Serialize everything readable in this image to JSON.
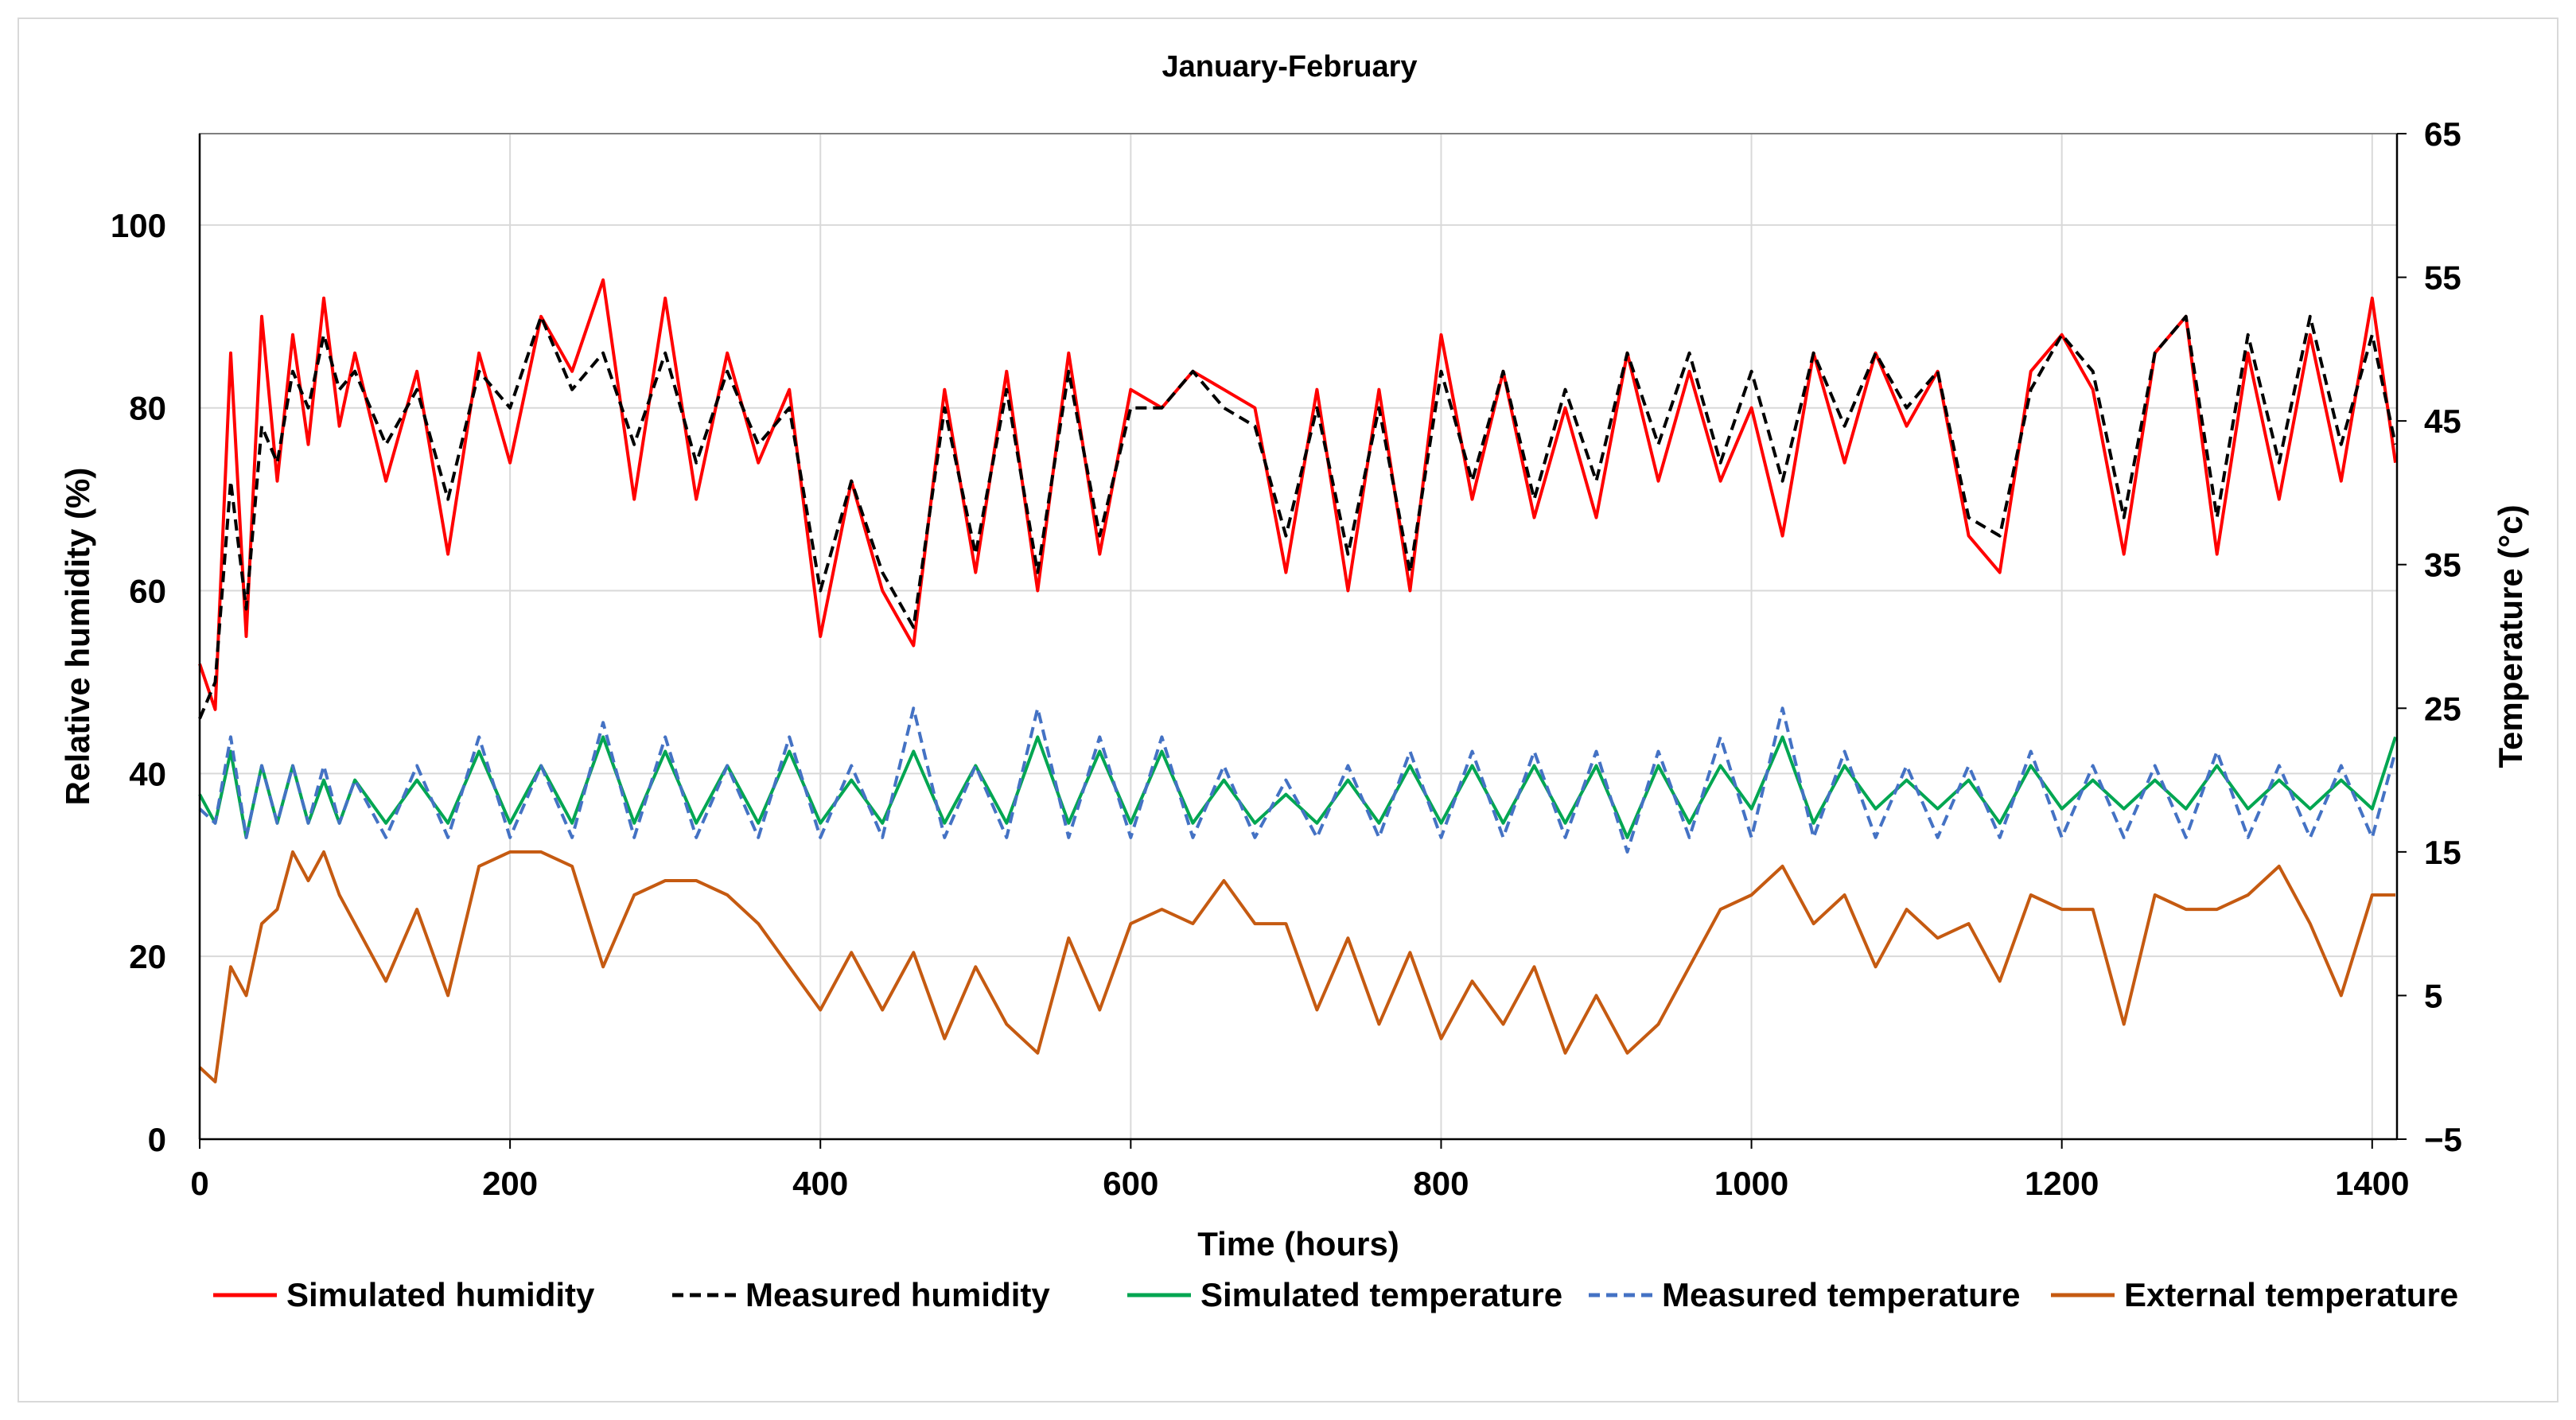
{
  "chart_data": {
    "type": "line",
    "title": "January-February",
    "xlabel": "Time (hours)",
    "ylabel": "Relative humidity (%)",
    "y2label": "Temperature (°c)",
    "xlim": [
      0,
      1416
    ],
    "ylim": [
      0,
      110
    ],
    "y2lim": [
      -5,
      65
    ],
    "x_ticks": [
      0,
      200,
      400,
      600,
      800,
      1000,
      1200,
      1400
    ],
    "y_ticks": [
      0,
      20,
      40,
      60,
      80,
      100
    ],
    "y2_ticks": [
      -5,
      5,
      15,
      25,
      35,
      45,
      55,
      65
    ],
    "grid": true,
    "legend_position": "bottom",
    "series": [
      {
        "name": "Simulated humidity",
        "axis": "left",
        "color": "#ff0000",
        "dash": "solid",
        "x": [
          0,
          10,
          20,
          30,
          40,
          50,
          60,
          70,
          80,
          90,
          100,
          120,
          140,
          160,
          180,
          200,
          220,
          240,
          260,
          280,
          300,
          320,
          340,
          360,
          380,
          400,
          420,
          440,
          460,
          480,
          500,
          520,
          540,
          560,
          580,
          600,
          620,
          640,
          660,
          680,
          700,
          720,
          740,
          760,
          780,
          800,
          820,
          840,
          860,
          880,
          900,
          920,
          940,
          960,
          980,
          1000,
          1020,
          1040,
          1060,
          1080,
          1100,
          1120,
          1140,
          1160,
          1180,
          1200,
          1220,
          1240,
          1260,
          1280,
          1300,
          1320,
          1340,
          1360,
          1380,
          1400,
          1415
        ],
        "values": [
          52,
          47,
          86,
          55,
          90,
          72,
          88,
          76,
          92,
          78,
          86,
          72,
          84,
          64,
          86,
          74,
          90,
          84,
          94,
          70,
          92,
          70,
          86,
          74,
          82,
          55,
          72,
          60,
          54,
          82,
          62,
          84,
          60,
          86,
          64,
          82,
          80,
          84,
          82,
          80,
          62,
          82,
          60,
          82,
          60,
          88,
          70,
          84,
          68,
          80,
          68,
          86,
          72,
          84,
          72,
          80,
          66,
          86,
          74,
          86,
          78,
          84,
          66,
          62,
          84,
          88,
          82,
          64,
          86,
          90,
          64,
          86,
          70,
          88,
          72,
          92,
          74
        ]
      },
      {
        "name": "Measured humidity",
        "axis": "left",
        "color": "#000000",
        "dash": "dashed",
        "x": [
          0,
          10,
          20,
          30,
          40,
          50,
          60,
          70,
          80,
          90,
          100,
          120,
          140,
          160,
          180,
          200,
          220,
          240,
          260,
          280,
          300,
          320,
          340,
          360,
          380,
          400,
          420,
          440,
          460,
          480,
          500,
          520,
          540,
          560,
          580,
          600,
          620,
          640,
          660,
          680,
          700,
          720,
          740,
          760,
          780,
          800,
          820,
          840,
          860,
          880,
          900,
          920,
          940,
          960,
          980,
          1000,
          1020,
          1040,
          1060,
          1080,
          1100,
          1120,
          1140,
          1160,
          1180,
          1200,
          1220,
          1240,
          1260,
          1280,
          1300,
          1320,
          1340,
          1360,
          1380,
          1400,
          1415
        ],
        "values": [
          46,
          50,
          72,
          58,
          78,
          74,
          84,
          80,
          88,
          82,
          84,
          76,
          82,
          70,
          84,
          80,
          90,
          82,
          86,
          76,
          86,
          74,
          84,
          76,
          80,
          60,
          72,
          62,
          56,
          80,
          64,
          82,
          62,
          84,
          66,
          80,
          80,
          84,
          80,
          78,
          66,
          80,
          64,
          80,
          62,
          84,
          72,
          84,
          70,
          82,
          72,
          86,
          76,
          86,
          74,
          84,
          72,
          86,
          78,
          86,
          80,
          84,
          68,
          66,
          82,
          88,
          84,
          68,
          86,
          90,
          68,
          88,
          74,
          90,
          76,
          88,
          76
        ]
      },
      {
        "name": "Simulated temperature",
        "axis": "right",
        "color": "#00a651",
        "dash": "solid",
        "x": [
          0,
          10,
          20,
          30,
          40,
          50,
          60,
          70,
          80,
          90,
          100,
          120,
          140,
          160,
          180,
          200,
          220,
          240,
          260,
          280,
          300,
          320,
          340,
          360,
          380,
          400,
          420,
          440,
          460,
          480,
          500,
          520,
          540,
          560,
          580,
          600,
          620,
          640,
          660,
          680,
          700,
          720,
          740,
          760,
          780,
          800,
          820,
          840,
          860,
          880,
          900,
          920,
          940,
          960,
          980,
          1000,
          1020,
          1040,
          1060,
          1080,
          1100,
          1120,
          1140,
          1160,
          1180,
          1200,
          1220,
          1240,
          1260,
          1280,
          1300,
          1320,
          1340,
          1360,
          1380,
          1400,
          1415
        ],
        "values": [
          19,
          17,
          22,
          16,
          21,
          17,
          21,
          17,
          20,
          17,
          20,
          17,
          20,
          17,
          22,
          17,
          21,
          17,
          23,
          17,
          22,
          17,
          21,
          17,
          22,
          17,
          20,
          17,
          22,
          17,
          21,
          17,
          23,
          17,
          22,
          17,
          22,
          17,
          20,
          17,
          19,
          17,
          20,
          17,
          21,
          17,
          21,
          17,
          21,
          17,
          21,
          16,
          21,
          17,
          21,
          18,
          23,
          17,
          21,
          18,
          20,
          18,
          20,
          17,
          21,
          18,
          20,
          18,
          20,
          18,
          21,
          18,
          20,
          18,
          20,
          18,
          23
        ]
      },
      {
        "name": "Measured temperature",
        "axis": "right",
        "color": "#4472c4",
        "dash": "dashed",
        "x": [
          0,
          10,
          20,
          30,
          40,
          50,
          60,
          70,
          80,
          90,
          100,
          120,
          140,
          160,
          180,
          200,
          220,
          240,
          260,
          280,
          300,
          320,
          340,
          360,
          380,
          400,
          420,
          440,
          460,
          480,
          500,
          520,
          540,
          560,
          580,
          600,
          620,
          640,
          660,
          680,
          700,
          720,
          740,
          760,
          780,
          800,
          820,
          840,
          860,
          880,
          900,
          920,
          940,
          960,
          980,
          1000,
          1020,
          1040,
          1060,
          1080,
          1100,
          1120,
          1140,
          1160,
          1180,
          1200,
          1220,
          1240,
          1260,
          1280,
          1300,
          1320,
          1340,
          1360,
          1380,
          1400,
          1415
        ],
        "values": [
          18,
          17,
          23,
          16,
          21,
          17,
          21,
          17,
          21,
          17,
          20,
          16,
          21,
          16,
          23,
          16,
          21,
          16,
          24,
          16,
          23,
          16,
          21,
          16,
          23,
          16,
          21,
          16,
          25,
          16,
          21,
          16,
          25,
          16,
          23,
          16,
          23,
          16,
          21,
          16,
          20,
          16,
          21,
          16,
          22,
          16,
          22,
          16,
          22,
          16,
          22,
          15,
          22,
          16,
          23,
          16,
          25,
          16,
          22,
          16,
          21,
          16,
          21,
          16,
          22,
          16,
          21,
          16,
          21,
          16,
          22,
          16,
          21,
          16,
          21,
          16,
          22
        ]
      },
      {
        "name": "External temperature",
        "axis": "right",
        "color": "#c55a11",
        "dash": "solid",
        "x": [
          0,
          10,
          20,
          30,
          40,
          50,
          60,
          70,
          80,
          90,
          100,
          120,
          140,
          160,
          180,
          200,
          220,
          240,
          260,
          280,
          300,
          320,
          340,
          360,
          380,
          400,
          420,
          440,
          460,
          480,
          500,
          520,
          540,
          560,
          580,
          600,
          620,
          640,
          660,
          680,
          700,
          720,
          740,
          760,
          780,
          800,
          820,
          840,
          860,
          880,
          900,
          920,
          940,
          960,
          980,
          1000,
          1020,
          1040,
          1060,
          1080,
          1100,
          1120,
          1140,
          1160,
          1180,
          1200,
          1220,
          1240,
          1260,
          1280,
          1300,
          1320,
          1340,
          1360,
          1380,
          1400,
          1415
        ],
        "values": [
          0,
          -1,
          7,
          5,
          10,
          11,
          15,
          13,
          15,
          12,
          10,
          6,
          11,
          5,
          14,
          15,
          15,
          14,
          7,
          12,
          13,
          13,
          12,
          10,
          7,
          4,
          8,
          4,
          8,
          2,
          7,
          3,
          1,
          9,
          4,
          10,
          11,
          10,
          13,
          10,
          10,
          4,
          9,
          3,
          8,
          2,
          6,
          3,
          7,
          1,
          5,
          1,
          3,
          7,
          11,
          12,
          14,
          10,
          12,
          7,
          11,
          9,
          10,
          6,
          12,
          11,
          11,
          3,
          12,
          11,
          11,
          12,
          14,
          10,
          5,
          12,
          12
        ]
      }
    ]
  }
}
